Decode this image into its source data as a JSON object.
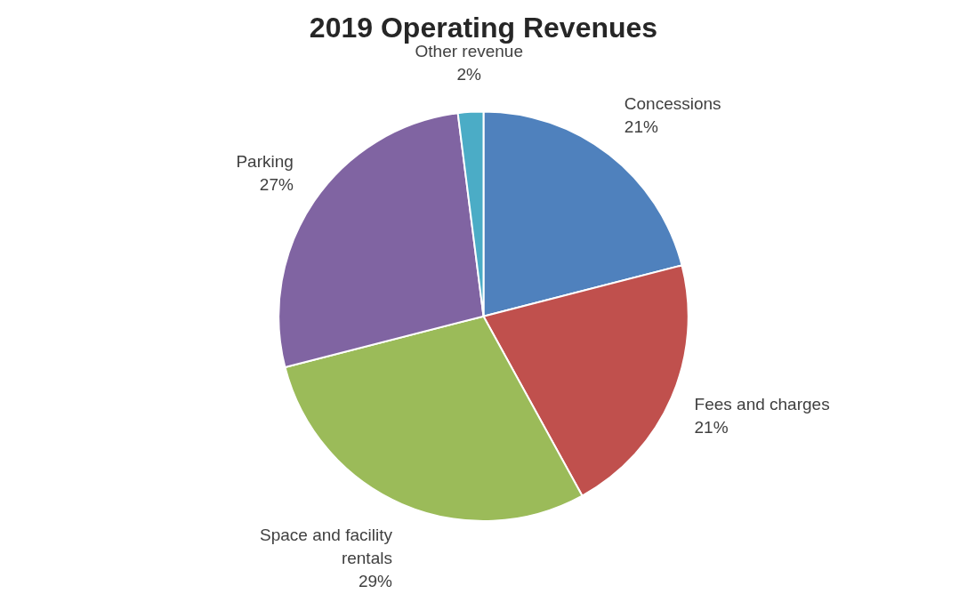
{
  "chart_data": {
    "type": "pie",
    "title": "2019 Operating Revenues",
    "categories": [
      "Concessions",
      "Fees and charges",
      "Space and facility rentals",
      "Parking",
      "Other revenue"
    ],
    "values": [
      21,
      21,
      29,
      27,
      2
    ],
    "value_labels": [
      "21%",
      "21%",
      "29%",
      "27%",
      "2%"
    ],
    "colors": [
      "#4f81bd",
      "#c0504d",
      "#9bbb59",
      "#8064a2",
      "#4bacc6"
    ],
    "legend": false
  }
}
